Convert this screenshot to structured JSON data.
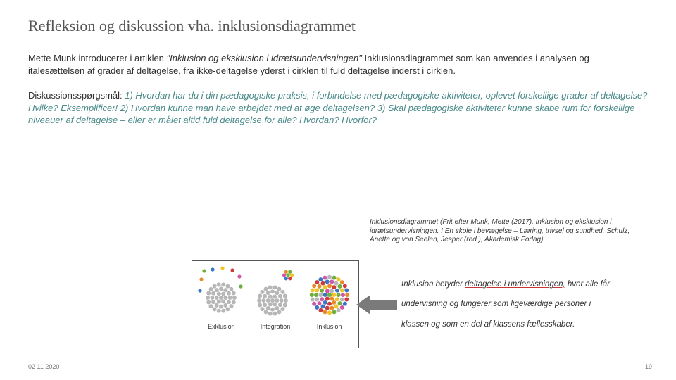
{
  "title": "Refleksion og diskussion vha. inklusionsdiagrammet",
  "intro_pre": "Mette Munk introducerer i artiklen ",
  "intro_article": "\"Inklusion og eksklusion i idrætsundervisningen\"",
  "intro_post": " Inklusionsdiagrammet som kan anvendes i analysen og italesættelsen af grader af deltagelse, fra ikke-deltagelse yderst i cirklen til fuld deltagelse inderst i cirklen.",
  "disc_label": "Diskussionsspørgsmål: ",
  "disc_questions": "1) Hvordan har du i din pædagogiske praksis, i forbindelse med pædagogiske aktiviteter, oplevet forskellige grader af deltagelse? Hvilke? Eksemplificer! 2) Hvordan kunne man have arbejdet med at øge deltagelsen?  3) Skal pædagogiske aktiviteter kunne skabe rum for forskellige niveauer af deltagelse – eller er målet altid fuld deltagelse for alle? Hvordan? Hvorfor?",
  "caption": "Inklusionsdiagrammet (Frit efter Munk, Mette (2017). Inklusion og eksklusion i idrætsundervisningen. I En skole i bevægelse – Læring, trivsel og sundhed. Schulz, Anette og von Seelen, Jesper (red.), Akademisk Forlag)",
  "diagram": {
    "labels": {
      "exclusion": "Exklusion",
      "integration": "Integration",
      "inclusion": "Inklusion"
    },
    "colors": {
      "grey": "#b7b7b7",
      "green": "#6fae3e",
      "yellow": "#f2c42c",
      "orange": "#e58b2d",
      "red": "#cf3a3a",
      "blue": "#3a76c4",
      "pink": "#d257a8",
      "arrow": "#7a7a7a"
    }
  },
  "quote": {
    "l1a": "Inklusion betyder ",
    "l1b": "deltagelse i undervisningen,",
    "l1c": " hvor alle får",
    "l2": "undervisning og fungerer som ligeværdige personer i",
    "l3": "klassen og som en del af klassens fællesskaber."
  },
  "footer": {
    "date": "02 11 2020",
    "page": "19"
  }
}
